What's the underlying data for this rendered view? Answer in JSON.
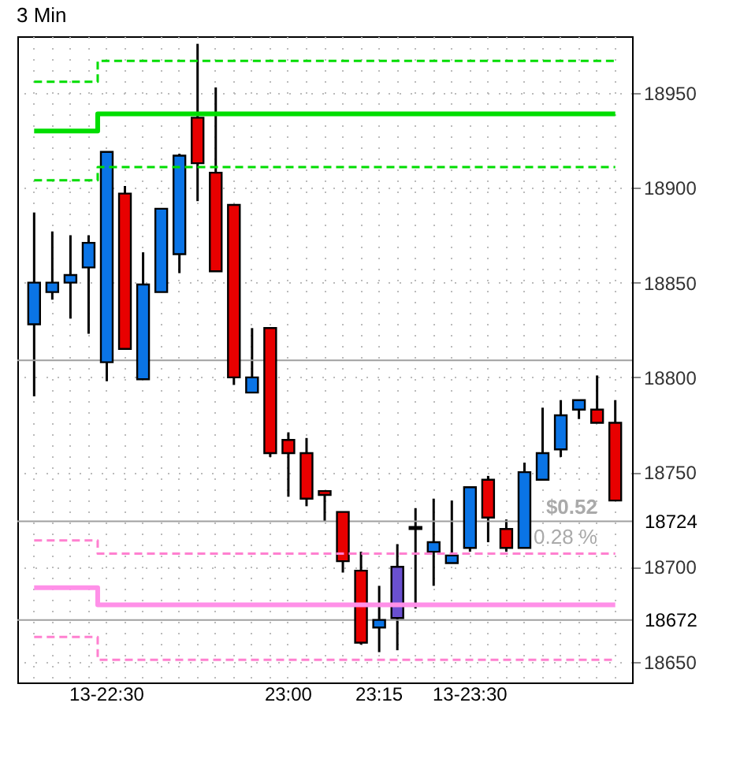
{
  "chart_data": {
    "type": "candlestick",
    "title": "3 Min",
    "categories": [
      null,
      null,
      null,
      null,
      "13-22:30",
      null,
      null,
      null,
      null,
      null,
      null,
      null,
      null,
      null,
      "23:00",
      null,
      null,
      null,
      null,
      "23:15",
      null,
      null,
      null,
      null,
      "13-23:30",
      null,
      null,
      null,
      null,
      null,
      null,
      null,
      null
    ],
    "ohlc": [
      [
        18828,
        18887,
        18790,
        18850
      ],
      [
        18845,
        18877,
        18841,
        18850
      ],
      [
        18850,
        18875,
        18831,
        18854
      ],
      [
        18858,
        18875,
        18823,
        18871
      ],
      [
        18808,
        18919,
        18798,
        18919
      ],
      [
        18897,
        18901,
        18815,
        18815
      ],
      [
        18799,
        18866,
        18799,
        18849
      ],
      [
        18845,
        18889,
        18845,
        18889
      ],
      [
        18865,
        18918,
        18855,
        18917
      ],
      [
        18937,
        18976,
        18893,
        18913
      ],
      [
        18908,
        18953,
        18856,
        18856
      ],
      [
        18891,
        18891,
        18796,
        18800
      ],
      [
        18792,
        18826,
        18792,
        18800
      ],
      [
        18826,
        18826,
        18758,
        18760
      ],
      [
        18767,
        18771,
        18737,
        18760
      ],
      [
        18760,
        18768,
        18732,
        18736
      ],
      [
        18740,
        18740,
        18724,
        18738
      ],
      [
        18729,
        18729,
        18697,
        18703
      ],
      [
        18698,
        18708,
        18659,
        18660
      ],
      [
        18668,
        18690,
        18655,
        18672
      ],
      [
        18673,
        18712,
        18656,
        18700
      ],
      [
        18721,
        18731,
        18678,
        18720
      ],
      [
        18708,
        18736,
        18690,
        18713
      ],
      [
        18702,
        18735,
        18702,
        18706
      ],
      [
        18710,
        18742,
        18708,
        18742
      ],
      [
        18746,
        18748,
        18713,
        18726
      ],
      [
        18720,
        18725,
        18708,
        18710
      ],
      [
        18710,
        18755,
        18710,
        18750
      ],
      [
        18746,
        18784,
        18746,
        18760
      ],
      [
        18762,
        18788,
        18758,
        18780
      ],
      [
        18783,
        18788,
        18778,
        18788
      ],
      [
        18783,
        18801,
        18776,
        18776
      ],
      [
        18776,
        18788,
        18735,
        18735
      ]
    ],
    "colors": [
      "#0a74e6",
      "#0a74e6",
      "#0a74e6",
      "#0a74e6",
      "#0a74e6",
      "#e80000",
      "#0a74e6",
      "#0a74e6",
      "#0a74e6",
      "#e80000",
      "#e80000",
      "#e80000",
      "#0a74e6",
      "#e80000",
      "#e80000",
      "#e80000",
      "#e80000",
      "#e80000",
      "#e80000",
      "#0a74e6",
      "#6a50d0",
      "#e80000",
      "#0a74e6",
      "#0a74e6",
      "#0a74e6",
      "#e80000",
      "#e80000",
      "#0a74e6",
      "#0a74e6",
      "#0a74e6",
      "#0a74e6",
      "#e80000",
      "#e80000"
    ],
    "series": [
      {
        "type": "step",
        "color": "#00dd00",
        "line_style": "dashed",
        "values": [
          18956,
          18956,
          18956,
          18956,
          18967,
          18967,
          18967,
          18967,
          18967,
          18967,
          18967,
          18967,
          18967,
          18967,
          18967,
          18967,
          18967,
          18967,
          18967,
          18967,
          18967,
          18967,
          18967,
          18967,
          18967,
          18967,
          18967,
          18967,
          18967,
          18967,
          18967,
          18967,
          18967
        ]
      },
      {
        "type": "step",
        "color": "#00dd00",
        "line_style": "solid",
        "values": [
          18930,
          18930,
          18930,
          18930,
          18939,
          18939,
          18939,
          18939,
          18939,
          18939,
          18939,
          18939,
          18939,
          18939,
          18939,
          18939,
          18939,
          18939,
          18939,
          18939,
          18939,
          18939,
          18939,
          18939,
          18939,
          18939,
          18939,
          18939,
          18939,
          18939,
          18939,
          18939,
          18939
        ]
      },
      {
        "type": "step",
        "color": "#00dd00",
        "line_style": "dashed",
        "values": [
          18904,
          18904,
          18904,
          18904,
          18911,
          18911,
          18911,
          18911,
          18911,
          18911,
          18911,
          18911,
          18911,
          18911,
          18911,
          18911,
          18911,
          18911,
          18911,
          18911,
          18911,
          18911,
          18911,
          18911,
          18911,
          18911,
          18911,
          18911,
          18911,
          18911,
          18911,
          18911,
          18911
        ]
      },
      {
        "type": "step",
        "color": "#ff80d0",
        "line_style": "dashed",
        "values": [
          18714,
          18714,
          18714,
          18714,
          18707,
          18707,
          18707,
          18707,
          18707,
          18707,
          18707,
          18707,
          18707,
          18707,
          18707,
          18707,
          18707,
          18707,
          18707,
          18707,
          18707,
          18707,
          18707,
          18707,
          18707,
          18707,
          18707,
          18707,
          18707,
          18707,
          18707,
          18707,
          18707
        ]
      },
      {
        "type": "step",
        "color": "#ff90e8",
        "line_style": "solid",
        "values": [
          18689,
          18689,
          18689,
          18689,
          18680,
          18680,
          18680,
          18680,
          18680,
          18680,
          18680,
          18680,
          18680,
          18680,
          18680,
          18680,
          18680,
          18680,
          18680,
          18680,
          18680,
          18680,
          18680,
          18680,
          18680,
          18680,
          18680,
          18680,
          18680,
          18680,
          18680,
          18680,
          18680
        ]
      },
      {
        "type": "step",
        "color": "#ff80d0",
        "line_style": "dashed",
        "values": [
          18663,
          18663,
          18663,
          18663,
          18651,
          18651,
          18651,
          18651,
          18651,
          18651,
          18651,
          18651,
          18651,
          18651,
          18651,
          18651,
          18651,
          18651,
          18651,
          18651,
          18651,
          18651,
          18651,
          18651,
          18651,
          18651,
          18651,
          18651,
          18651,
          18651,
          18651,
          18651,
          18651
        ]
      }
    ],
    "ref_lines": [
      {
        "axis": "y",
        "value": 18809,
        "label": null,
        "color": "#a0a0a0"
      },
      {
        "axis": "y",
        "value": 18724,
        "label": "18724",
        "color": "#a0a0a0"
      },
      {
        "axis": "y",
        "value": 18672,
        "label": "18672",
        "color": "#a0a0a0"
      }
    ],
    "annotations": [
      "$0.52",
      "0.28 %"
    ],
    "ylim": [
      18639,
      18980
    ],
    "yticks": [
      18650,
      18700,
      18750,
      18800,
      18850,
      18900,
      18950
    ],
    "grid": true
  }
}
